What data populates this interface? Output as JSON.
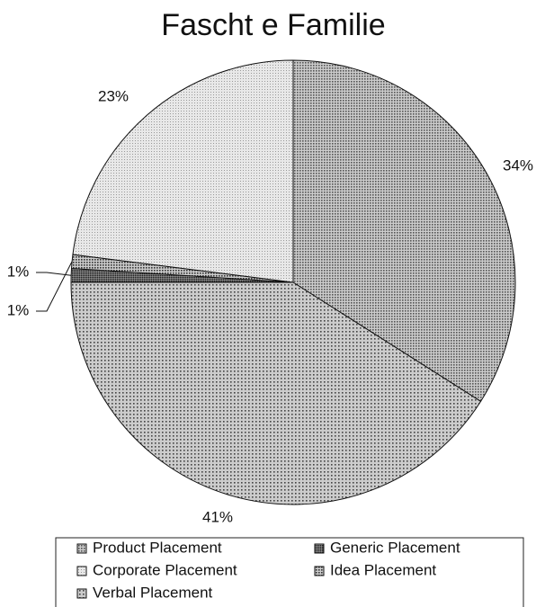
{
  "chart_data": {
    "type": "pie",
    "title": "Fascht e Familie",
    "categories": [
      "Product Placement",
      "Verbal Placement",
      "Generic Placement",
      "Idea Placement",
      "Corporate Placement"
    ],
    "values": [
      34,
      41,
      1,
      1,
      23
    ],
    "value_labels": [
      "34%",
      "41%",
      "1%",
      "1%",
      "23%"
    ],
    "colors": [
      "#555555",
      "#444444",
      "#222222",
      "#333333",
      "#999999"
    ]
  }
}
